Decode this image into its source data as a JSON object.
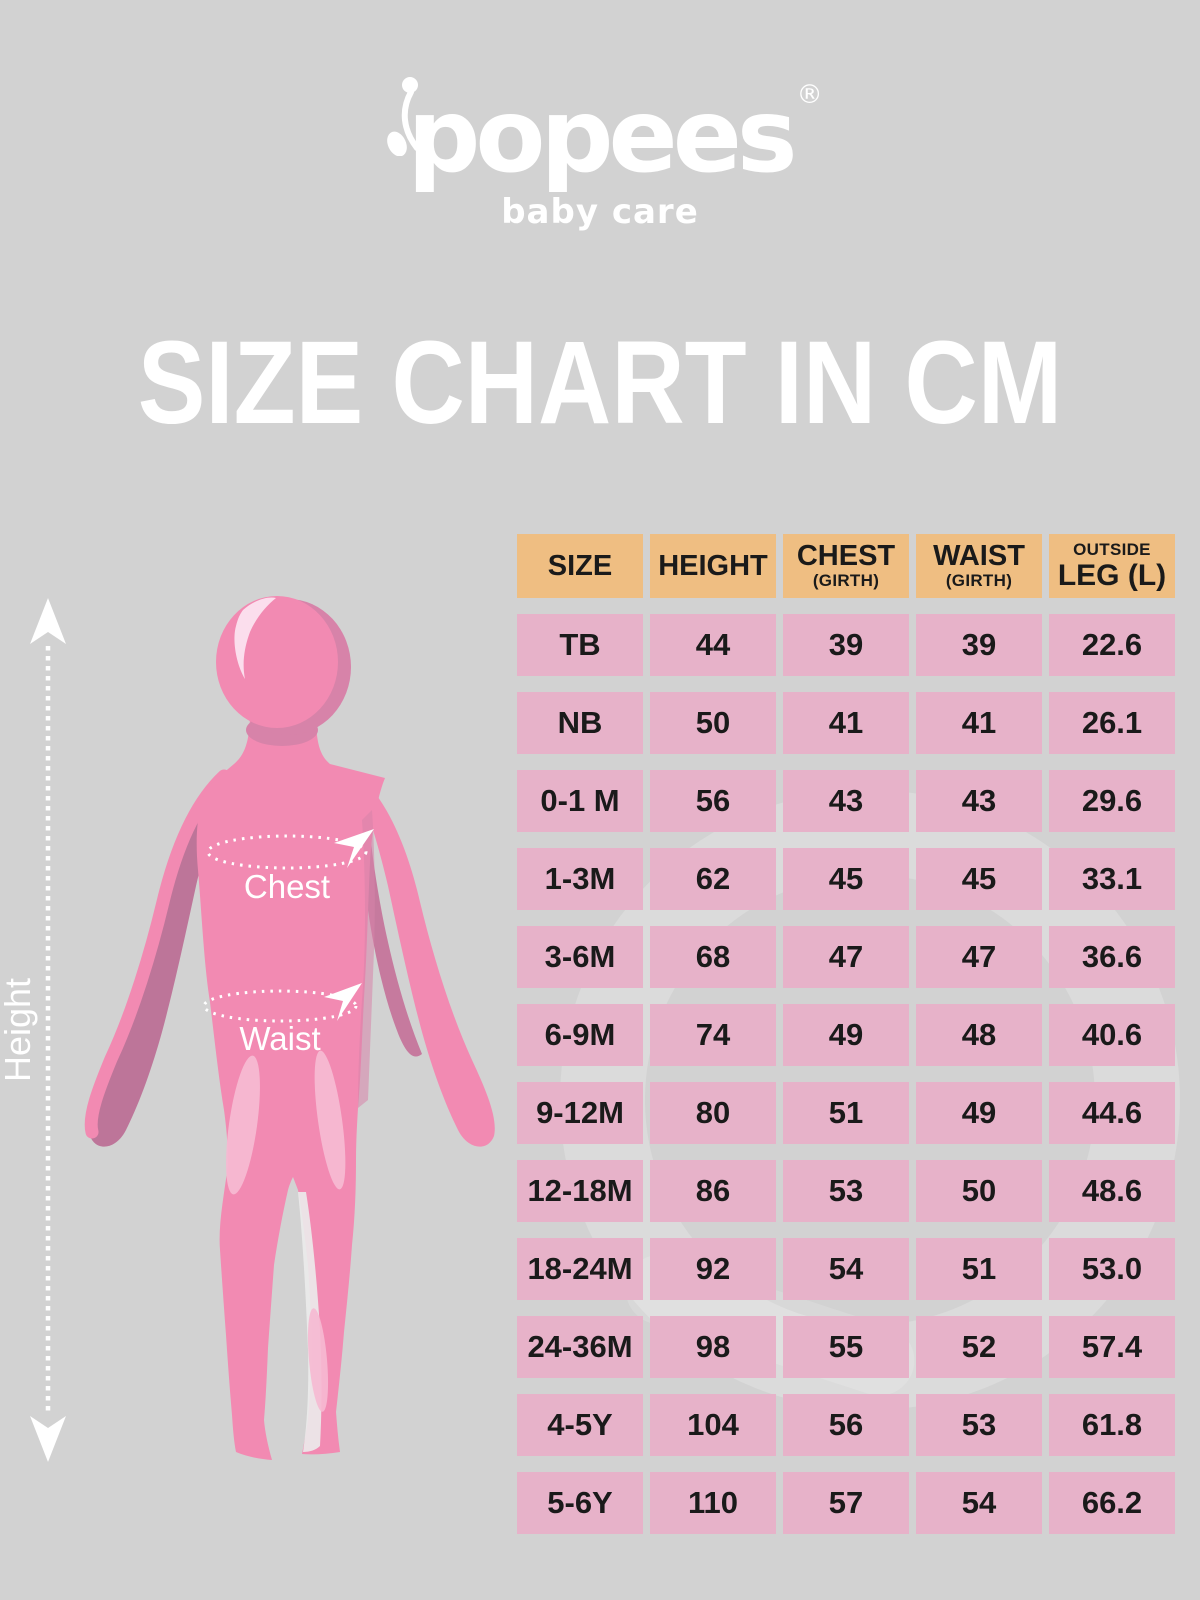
{
  "brand": {
    "wordmark": "popees",
    "registered_mark": "®",
    "tagline": "baby care"
  },
  "title": "SIZE CHART IN CM",
  "diagram": {
    "height_label": "Height",
    "chest_label": "Chest",
    "waist_label": "Waist"
  },
  "table": {
    "headers": [
      {
        "id": "size",
        "label": "SIZE",
        "sub": ""
      },
      {
        "id": "height",
        "label": "HEIGHT",
        "sub": ""
      },
      {
        "id": "chest",
        "label": "CHEST",
        "sub": "(GIRTH)"
      },
      {
        "id": "waist",
        "label": "WAIST",
        "sub": "(GIRTH)"
      },
      {
        "id": "outside-leg",
        "label": "LEG (L)",
        "sub": "OUTSIDE"
      }
    ],
    "rows": [
      [
        "TB",
        "44",
        "39",
        "39",
        "22.6"
      ],
      [
        "NB",
        "50",
        "41",
        "41",
        "26.1"
      ],
      [
        "0-1 M",
        "56",
        "43",
        "43",
        "29.6"
      ],
      [
        "1-3M",
        "62",
        "45",
        "45",
        "33.1"
      ],
      [
        "3-6M",
        "68",
        "47",
        "47",
        "36.6"
      ],
      [
        "6-9M",
        "74",
        "49",
        "48",
        "40.6"
      ],
      [
        "9-12M",
        "80",
        "51",
        "49",
        "44.6"
      ],
      [
        "12-18M",
        "86",
        "53",
        "50",
        "48.6"
      ],
      [
        "18-24M",
        "92",
        "54",
        "51",
        "53.0"
      ],
      [
        "24-36M",
        "98",
        "55",
        "52",
        "57.4"
      ],
      [
        "4-5Y",
        "104",
        "56",
        "53",
        "61.8"
      ],
      [
        "5-6Y",
        "110",
        "57",
        "54",
        "66.2"
      ]
    ]
  },
  "colors": {
    "background": "#d2d2d2",
    "header_fill": "#efbe82",
    "row_fill": "#e7b2c9",
    "figure_pink": "#f28ab2",
    "figure_shadow": "#bd7599",
    "text_dark": "#1a1a1a",
    "white": "#ffffff"
  },
  "chart_data": {
    "type": "table",
    "title": "SIZE CHART IN CM",
    "unit": "cm",
    "columns": [
      "SIZE",
      "HEIGHT",
      "CHEST (GIRTH)",
      "WAIST (GIRTH)",
      "OUTSIDE LEG (L)"
    ],
    "rows": [
      [
        "TB",
        44,
        39,
        39,
        22.6
      ],
      [
        "NB",
        50,
        41,
        41,
        26.1
      ],
      [
        "0-1 M",
        56,
        43,
        43,
        29.6
      ],
      [
        "1-3M",
        62,
        45,
        45,
        33.1
      ],
      [
        "3-6M",
        68,
        47,
        47,
        36.6
      ],
      [
        "6-9M",
        74,
        49,
        48,
        40.6
      ],
      [
        "9-12M",
        80,
        51,
        49,
        44.6
      ],
      [
        "12-18M",
        86,
        53,
        50,
        48.6
      ],
      [
        "18-24M",
        92,
        54,
        51,
        53.0
      ],
      [
        "24-36M",
        98,
        55,
        52,
        57.4
      ],
      [
        "4-5Y",
        104,
        56,
        53,
        61.8
      ],
      [
        "5-6Y",
        110,
        57,
        54,
        66.2
      ]
    ]
  }
}
